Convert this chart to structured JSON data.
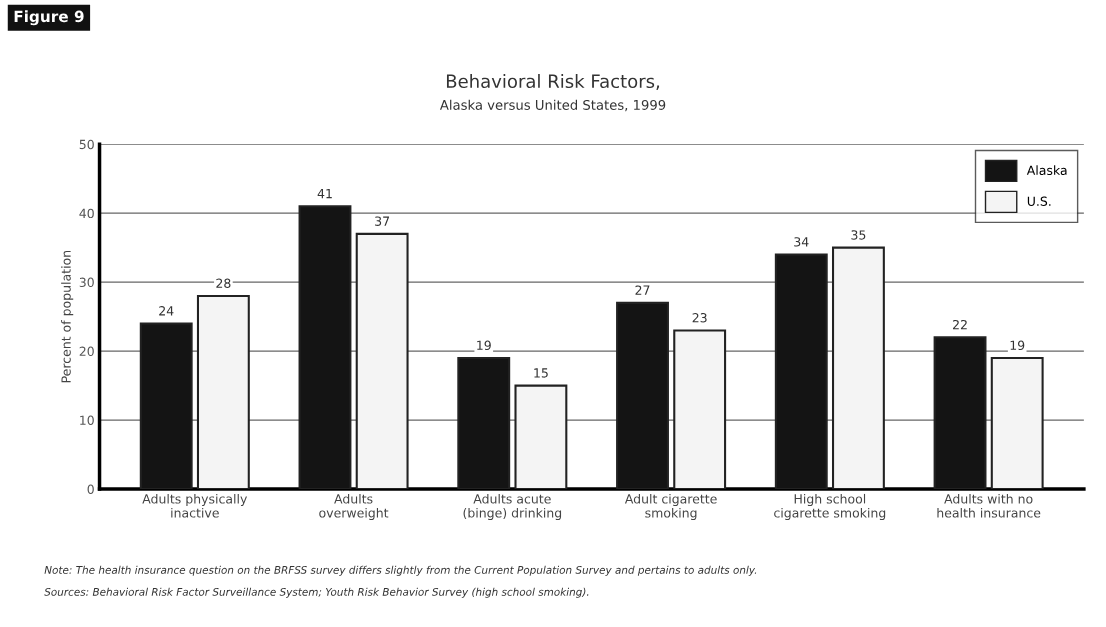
{
  "chart_data": {
    "type": "bar",
    "title": "Behavioral Risk Factors,",
    "subtitle": "Alaska versus United States, 1999",
    "ylabel": "Percent of population",
    "categories": [
      "Adults physically\ninactive",
      "Adults\noverweight",
      "Adults acute\n(binge) drinking",
      "Adult cigarette\nsmoking",
      "High school\ncigarette smoking",
      "Adults with no\nhealth insurance"
    ],
    "series": [
      {
        "name": "Alaska",
        "color": "#141414",
        "values": [
          24,
          41,
          19,
          27,
          34,
          22
        ]
      },
      {
        "name": "U.S.",
        "color": "#f4f4f4",
        "values": [
          28,
          37,
          15,
          23,
          35,
          19
        ]
      }
    ],
    "ylim": [
      0,
      50
    ],
    "yticks": [
      0,
      10,
      20,
      30,
      40,
      50
    ],
    "grid": "y",
    "legend": "top right",
    "data_labels": true,
    "annotations": [
      "Figure 9",
      "Note: The health insurance question on the BRFSS survey differs slightly from the Current Population Survey and pertains to adults only.",
      "Sources: Behavioral Risk Factor Surveillance System; Youth Risk Behavior Survey (high school smoking)."
    ]
  }
}
